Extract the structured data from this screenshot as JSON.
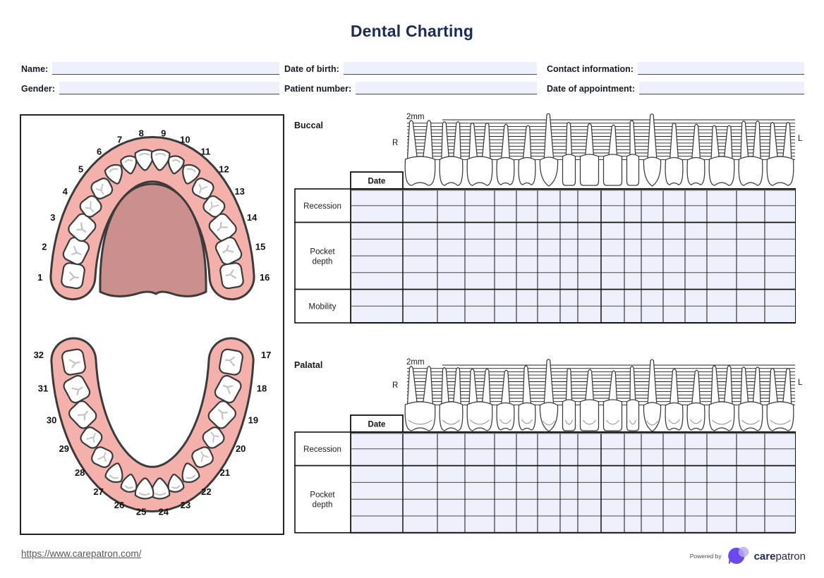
{
  "title": "Dental Charting",
  "patient_fields": [
    {
      "label": "Name:",
      "value": ""
    },
    {
      "label": "Date of birth:",
      "value": ""
    },
    {
      "label": "Contact information:",
      "value": ""
    },
    {
      "label": "Gender:",
      "value": ""
    },
    {
      "label": "Patient number:",
      "value": ""
    },
    {
      "label": "Date of appointment:",
      "value": ""
    }
  ],
  "tooth_diagram": {
    "upper_numbers": [
      "1",
      "2",
      "3",
      "4",
      "5",
      "6",
      "7",
      "8",
      "9",
      "10",
      "11",
      "12",
      "13",
      "14",
      "15",
      "16"
    ],
    "lower_numbers": [
      "17",
      "18",
      "19",
      "20",
      "21",
      "22",
      "23",
      "24",
      "25",
      "26",
      "27",
      "28",
      "29",
      "30",
      "31",
      "32"
    ],
    "upper_types": [
      "molar",
      "molar",
      "molar",
      "premolar",
      "premolar",
      "canine",
      "lateral",
      "central",
      "central",
      "lateral",
      "canine",
      "premolar",
      "premolar",
      "molar",
      "molar",
      "molar"
    ],
    "lower_types": [
      "molar",
      "molar",
      "molar",
      "premolar",
      "premolar",
      "canine",
      "lateral",
      "central",
      "central",
      "lateral",
      "canine",
      "premolar",
      "premolar",
      "molar",
      "molar",
      "molar"
    ]
  },
  "charts": [
    {
      "name": "Buccal",
      "scale_label": "2mm",
      "left_marker": "R",
      "right_marker": "L",
      "date_label": "Date",
      "sections": [
        {
          "label": "Recession",
          "lines": 2
        },
        {
          "label": "Pocket depth",
          "lines": 4
        },
        {
          "label": "Mobility",
          "lines": 2
        }
      ],
      "teeth_types": [
        "molar",
        "molar",
        "molar",
        "premolar",
        "premolar",
        "canine",
        "incisor",
        "incisor",
        "incisor",
        "incisor",
        "canine",
        "premolar",
        "premolar",
        "molar",
        "molar",
        "molar"
      ],
      "columns": [
        49,
        39,
        42,
        31,
        30,
        32,
        25,
        33,
        33,
        24,
        31,
        31,
        31,
        42,
        40,
        44
      ]
    },
    {
      "name": "Palatal",
      "scale_label": "2mm",
      "left_marker": "R",
      "right_marker": "L",
      "date_label": "Date",
      "sections": [
        {
          "label": "Recession",
          "lines": 2
        },
        {
          "label": "Pocket depth",
          "lines": 4
        }
      ],
      "teeth_types": [
        "molar",
        "molar",
        "molar",
        "premolar",
        "premolar",
        "canine",
        "incisor",
        "incisor",
        "incisor",
        "incisor",
        "canine",
        "premolar",
        "premolar",
        "molar",
        "molar",
        "molar"
      ],
      "columns": [
        49,
        39,
        42,
        31,
        30,
        32,
        25,
        33,
        33,
        24,
        31,
        31,
        31,
        42,
        40,
        44
      ]
    }
  ],
  "footer": {
    "url": "https://www.carepatron.com/",
    "powered_by": "Powered by",
    "brand_bold": "care",
    "brand_regular": "patron"
  },
  "colors": {
    "navy": "#1b2a5c",
    "field_bg": "#edeffa",
    "cell_bg": "#edf0fa",
    "gum": "#f4b1ac",
    "palate": "#cb8f8d",
    "tooth_outline": "#3b3b3b",
    "fissure": "#c3c3c3",
    "brand_purple": "#6c49ef",
    "brand_lavender": "#bcaaf4"
  }
}
